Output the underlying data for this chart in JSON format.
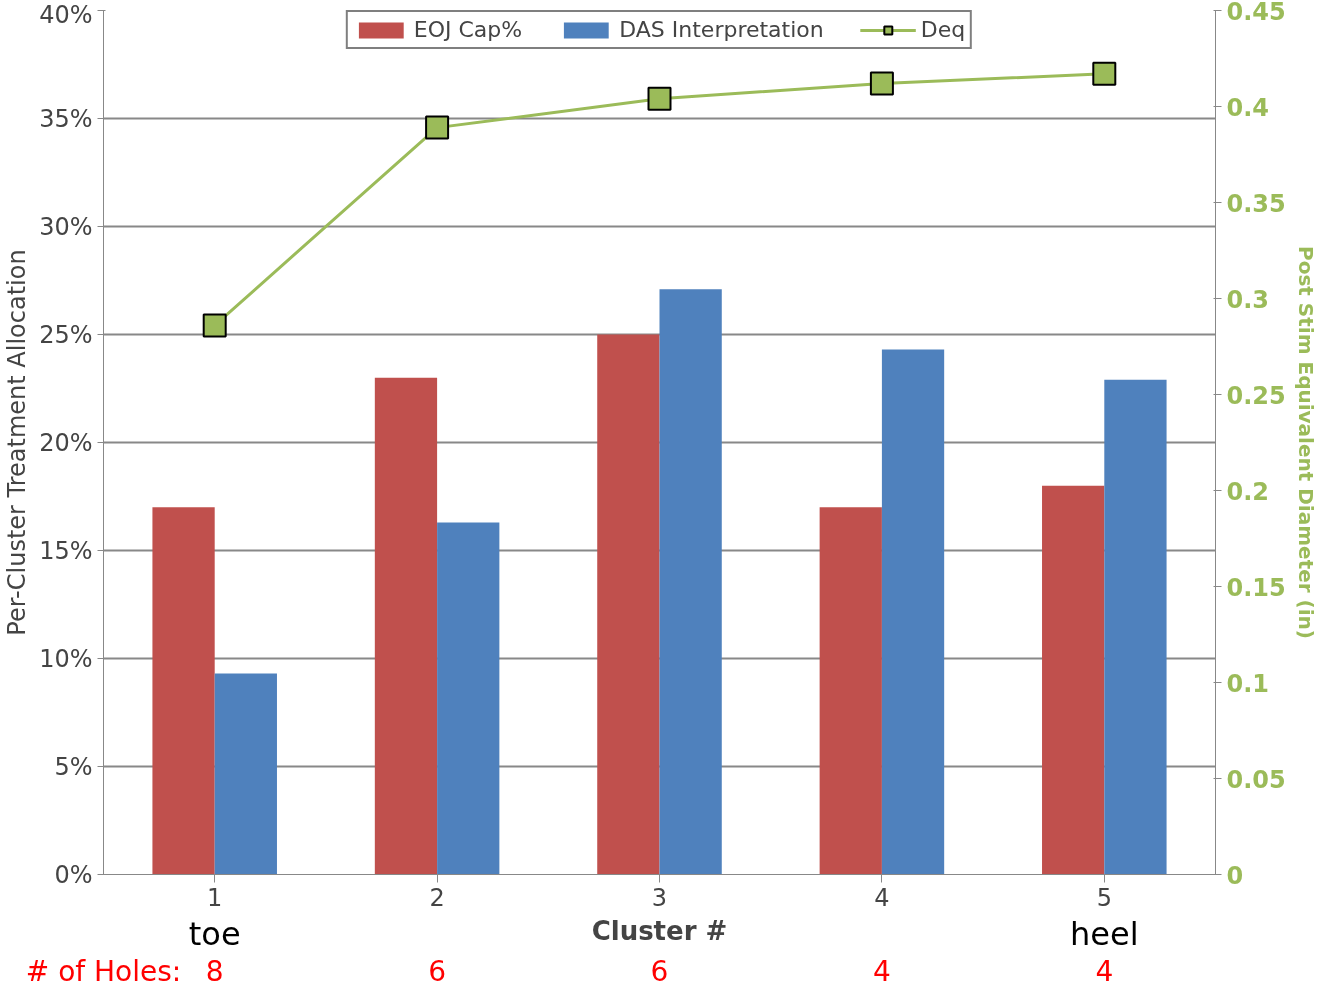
{
  "chart_data": {
    "type": "bar",
    "categories": [
      "1",
      "2",
      "3",
      "4",
      "5"
    ],
    "xlabel": "Cluster #",
    "ylabel": "Per-Cluster Treatment Allocation",
    "y2label": "Post Stim Equivalent Diameter (in)",
    "series": [
      {
        "name": "EOJ Cap%",
        "color": "#c0504d",
        "values": [
          17,
          23,
          25,
          17,
          18
        ]
      },
      {
        "name": "DAS Interpretation",
        "color": "#4f81bd",
        "values": [
          9.3,
          16.3,
          27.1,
          24.3,
          22.9
        ]
      },
      {
        "name": "Deq",
        "type": "line",
        "axis": "y2",
        "color": "#9bbb59",
        "marker": "square",
        "values": [
          0.286,
          0.389,
          0.404,
          0.412,
          0.417
        ]
      }
    ],
    "ylim": [
      0,
      40
    ],
    "yticks": [
      {
        "value": 0,
        "label": "0%"
      },
      {
        "value": 5,
        "label": "5%"
      },
      {
        "value": 10,
        "label": "10%"
      },
      {
        "value": 15,
        "label": "15%"
      },
      {
        "value": 20,
        "label": "20%"
      },
      {
        "value": 25,
        "label": "25%"
      },
      {
        "value": 30,
        "label": "30%"
      },
      {
        "value": 35,
        "label": "35%"
      },
      {
        "value": 40,
        "label": "40%"
      }
    ],
    "y2lim": [
      0,
      0.45
    ],
    "y2ticks": [
      0,
      0.05,
      0.1,
      0.15,
      0.2,
      0.25,
      0.3,
      0.35,
      0.4,
      0.45
    ],
    "grid": "y",
    "legend": "top",
    "annotations": [
      "toe",
      "heel",
      "# of Holes:",
      "8",
      "6",
      "6",
      "4",
      "4"
    ]
  }
}
